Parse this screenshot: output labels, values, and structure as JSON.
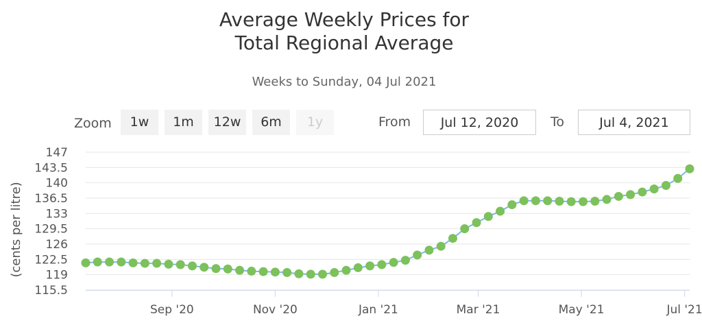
{
  "title_line1": "Average Weekly Prices for",
  "title_line2": "Total Regional Average",
  "subtitle": "Weeks to Sunday, 04 Jul 2021",
  "range_selector": {
    "zoom_label": "Zoom",
    "buttons": [
      "1w",
      "1m",
      "12w",
      "6m",
      "1y"
    ],
    "disabled_button": "1y",
    "from_label": "From",
    "from_value": "Jul 12, 2020",
    "to_label": "To",
    "to_value": "Jul 4, 2021"
  },
  "colors": {
    "marker": "#7cc15b",
    "line": "#7cb5ec",
    "grid": "#e6e6e6",
    "axis_text": "#555555"
  },
  "chart_data": {
    "type": "line",
    "ylabel": "(cents per litre)",
    "xlabel": "",
    "ylim": [
      115.5,
      147
    ],
    "yticks": [
      "147",
      "143.5",
      "140",
      "136.5",
      "133",
      "129.5",
      "126",
      "122.5",
      "119",
      "115.5"
    ],
    "xticks": [
      {
        "date": "2020-09-01",
        "label": "Sep '20"
      },
      {
        "date": "2020-11-01",
        "label": "Nov '20"
      },
      {
        "date": "2021-01-01",
        "label": "Jan '21"
      },
      {
        "date": "2021-03-01",
        "label": "Mar '21"
      },
      {
        "date": "2021-05-01",
        "label": "May '21"
      },
      {
        "date": "2021-07-01",
        "label": "Jul '21"
      }
    ],
    "xlim": [
      "2020-07-12",
      "2021-07-04"
    ],
    "grid": true,
    "series": [
      {
        "marker": "circle",
        "points": [
          [
            "2020-07-12",
            121.7
          ],
          [
            "2020-07-19",
            121.9
          ],
          [
            "2020-07-26",
            121.9
          ],
          [
            "2020-08-02",
            121.9
          ],
          [
            "2020-08-09",
            121.7
          ],
          [
            "2020-08-16",
            121.6
          ],
          [
            "2020-08-23",
            121.6
          ],
          [
            "2020-08-30",
            121.4
          ],
          [
            "2020-09-06",
            121.3
          ],
          [
            "2020-09-13",
            121.0
          ],
          [
            "2020-09-20",
            120.7
          ],
          [
            "2020-09-27",
            120.4
          ],
          [
            "2020-10-04",
            120.3
          ],
          [
            "2020-10-11",
            120.0
          ],
          [
            "2020-10-18",
            119.8
          ],
          [
            "2020-10-25",
            119.7
          ],
          [
            "2020-11-01",
            119.6
          ],
          [
            "2020-11-08",
            119.5
          ],
          [
            "2020-11-15",
            119.2
          ],
          [
            "2020-11-22",
            119.1
          ],
          [
            "2020-11-29",
            119.1
          ],
          [
            "2020-12-06",
            119.5
          ],
          [
            "2020-12-13",
            120.0
          ],
          [
            "2020-12-20",
            120.6
          ],
          [
            "2020-12-27",
            121.0
          ],
          [
            "2021-01-03",
            121.3
          ],
          [
            "2021-01-10",
            121.8
          ],
          [
            "2021-01-17",
            122.3
          ],
          [
            "2021-01-24",
            123.5
          ],
          [
            "2021-01-31",
            124.6
          ],
          [
            "2021-02-07",
            125.5
          ],
          [
            "2021-02-14",
            127.3
          ],
          [
            "2021-02-21",
            129.5
          ],
          [
            "2021-02-28",
            130.9
          ],
          [
            "2021-03-07",
            132.3
          ],
          [
            "2021-03-14",
            133.5
          ],
          [
            "2021-03-21",
            135.0
          ],
          [
            "2021-03-28",
            135.9
          ],
          [
            "2021-04-04",
            135.9
          ],
          [
            "2021-04-11",
            135.9
          ],
          [
            "2021-04-18",
            135.8
          ],
          [
            "2021-04-25",
            135.7
          ],
          [
            "2021-05-02",
            135.7
          ],
          [
            "2021-05-09",
            135.8
          ],
          [
            "2021-05-16",
            136.2
          ],
          [
            "2021-05-23",
            136.9
          ],
          [
            "2021-05-30",
            137.3
          ],
          [
            "2021-06-06",
            137.9
          ],
          [
            "2021-06-13",
            138.6
          ],
          [
            "2021-06-20",
            139.4
          ],
          [
            "2021-06-27",
            141.0
          ],
          [
            "2021-07-04",
            143.2
          ]
        ]
      }
    ]
  }
}
